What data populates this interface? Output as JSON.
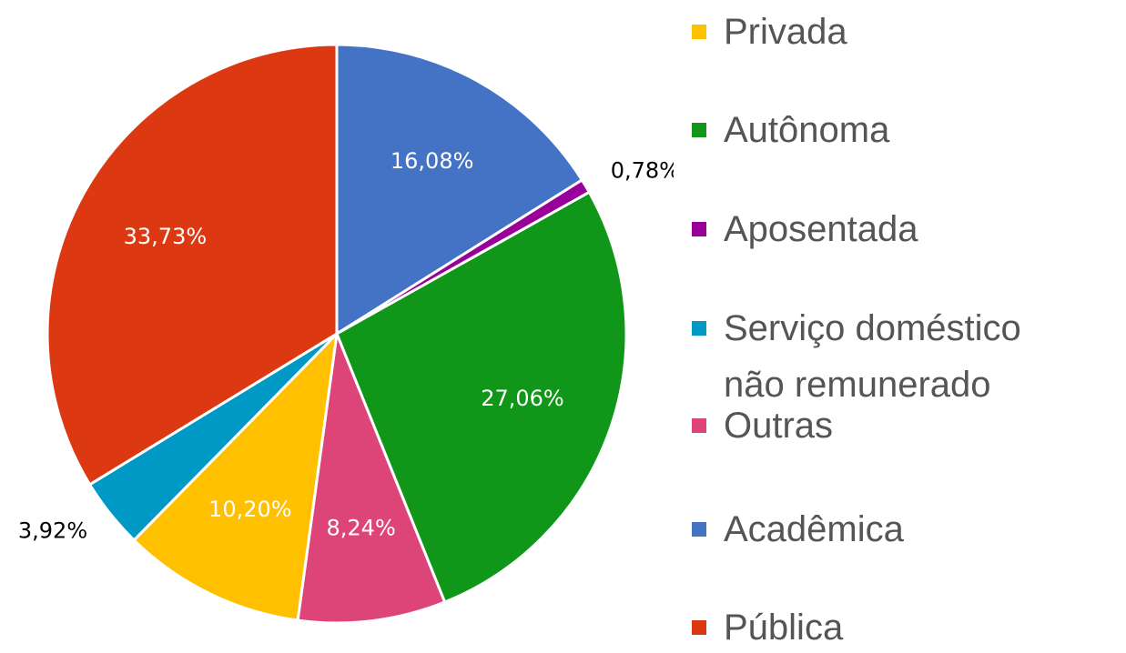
{
  "chart_data": {
    "type": "pie",
    "categories": [
      "Acadêmica",
      "Aposentada",
      "Autônoma",
      "Outras",
      "Privada",
      "Serviço doméstico não remunerado",
      "Pública"
    ],
    "values": [
      16.08,
      0.78,
      27.06,
      8.24,
      10.2,
      3.92,
      33.73
    ],
    "value_labels": [
      "16,08%",
      "0,78%",
      "27,06%",
      "8,24%",
      "10,20%",
      "3,92%",
      "33,73%"
    ],
    "colors": [
      "#4472c4",
      "#990099",
      "#109618",
      "#dd4477",
      "#ffc000",
      "#0099c6",
      "#dc3912"
    ],
    "legend": "right"
  }
}
